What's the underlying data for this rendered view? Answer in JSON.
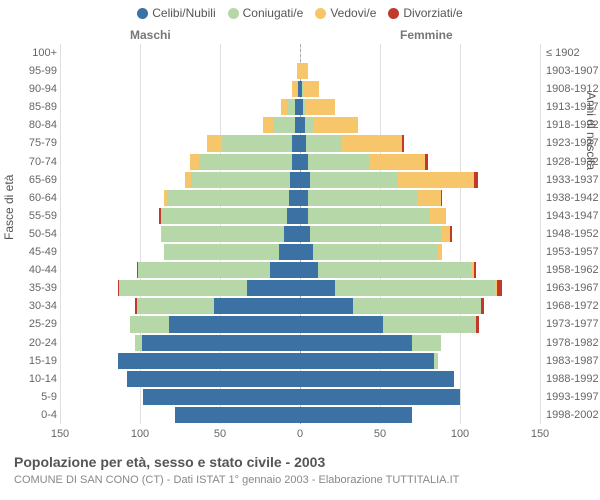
{
  "legend": [
    {
      "label": "Celibi/Nubili",
      "color": "#3b72a3"
    },
    {
      "label": "Coniugati/e",
      "color": "#b6d7a8"
    },
    {
      "label": "Vedovi/e",
      "color": "#f7c66b"
    },
    {
      "label": "Divorziati/e",
      "color": "#c0392b"
    }
  ],
  "gender": {
    "male": "Maschi",
    "female": "Femmine"
  },
  "yaxis_left_title": "Fasce di età",
  "yaxis_right_title": "Anni di nascita",
  "x_axis": {
    "max": 150,
    "ticks": [
      150,
      100,
      50,
      0,
      50,
      100,
      150
    ]
  },
  "pyramid": {
    "colors": {
      "celibi": "#3b72a3",
      "coniugati": "#b6d7a8",
      "vedovi": "#f7c66b",
      "divorziati": "#c0392b"
    },
    "rows": [
      {
        "age": "100+",
        "birth": "≤ 1902",
        "m": [
          0,
          0,
          0,
          0
        ],
        "f": [
          0,
          0,
          0,
          0
        ]
      },
      {
        "age": "95-99",
        "birth": "1903-1907",
        "m": [
          0,
          0,
          2,
          0
        ],
        "f": [
          0,
          0,
          5,
          0
        ]
      },
      {
        "age": "90-94",
        "birth": "1908-1912",
        "m": [
          1,
          1,
          3,
          0
        ],
        "f": [
          1,
          1,
          10,
          0
        ]
      },
      {
        "age": "85-89",
        "birth": "1913-1917",
        "m": [
          3,
          5,
          4,
          0
        ],
        "f": [
          2,
          2,
          18,
          0
        ]
      },
      {
        "age": "80-84",
        "birth": "1918-1922",
        "m": [
          3,
          14,
          6,
          0
        ],
        "f": [
          3,
          5,
          28,
          0
        ]
      },
      {
        "age": "75-79",
        "birth": "1923-1927",
        "m": [
          5,
          44,
          9,
          0
        ],
        "f": [
          4,
          22,
          38,
          1
        ]
      },
      {
        "age": "70-74",
        "birth": "1928-1932",
        "m": [
          5,
          58,
          6,
          0
        ],
        "f": [
          5,
          38,
          35,
          2
        ]
      },
      {
        "age": "65-69",
        "birth": "1933-1937",
        "m": [
          6,
          62,
          4,
          0
        ],
        "f": [
          6,
          55,
          48,
          2
        ]
      },
      {
        "age": "60-64",
        "birth": "1938-1942",
        "m": [
          7,
          76,
          2,
          0
        ],
        "f": [
          5,
          68,
          15,
          1
        ]
      },
      {
        "age": "55-59",
        "birth": "1943-1947",
        "m": [
          8,
          78,
          1,
          1
        ],
        "f": [
          5,
          76,
          10,
          0
        ]
      },
      {
        "age": "50-54",
        "birth": "1948-1952",
        "m": [
          10,
          76,
          1,
          0
        ],
        "f": [
          6,
          82,
          6,
          1
        ]
      },
      {
        "age": "45-49",
        "birth": "1953-1957",
        "m": [
          13,
          72,
          0,
          0
        ],
        "f": [
          8,
          78,
          3,
          0
        ]
      },
      {
        "age": "40-44",
        "birth": "1958-1962",
        "m": [
          19,
          82,
          0,
          1
        ],
        "f": [
          11,
          96,
          2,
          1
        ]
      },
      {
        "age": "35-39",
        "birth": "1963-1967",
        "m": [
          33,
          80,
          0,
          1
        ],
        "f": [
          22,
          100,
          1,
          3
        ]
      },
      {
        "age": "30-34",
        "birth": "1968-1972",
        "m": [
          54,
          48,
          0,
          1
        ],
        "f": [
          33,
          80,
          0,
          2
        ]
      },
      {
        "age": "25-29",
        "birth": "1973-1977",
        "m": [
          82,
          24,
          0,
          0
        ],
        "f": [
          52,
          58,
          0,
          2
        ]
      },
      {
        "age": "20-24",
        "birth": "1978-1982",
        "m": [
          99,
          4,
          0,
          0
        ],
        "f": [
          70,
          18,
          0,
          0
        ]
      },
      {
        "age": "15-19",
        "birth": "1983-1987",
        "m": [
          114,
          0,
          0,
          0
        ],
        "f": [
          84,
          2,
          0,
          0
        ]
      },
      {
        "age": "10-14",
        "birth": "1988-1992",
        "m": [
          108,
          0,
          0,
          0
        ],
        "f": [
          96,
          0,
          0,
          0
        ]
      },
      {
        "age": "5-9",
        "birth": "1993-1997",
        "m": [
          98,
          0,
          0,
          0
        ],
        "f": [
          100,
          0,
          0,
          0
        ]
      },
      {
        "age": "0-4",
        "birth": "1998-2002",
        "m": [
          78,
          0,
          0,
          0
        ],
        "f": [
          70,
          0,
          0,
          0
        ]
      }
    ]
  },
  "footer": {
    "title": "Popolazione per età, sesso e stato civile - 2003",
    "sub": "COMUNE DI SAN CONO (CT) - Dati ISTAT 1° gennaio 2003 - Elaborazione TUTTITALIA.IT"
  }
}
